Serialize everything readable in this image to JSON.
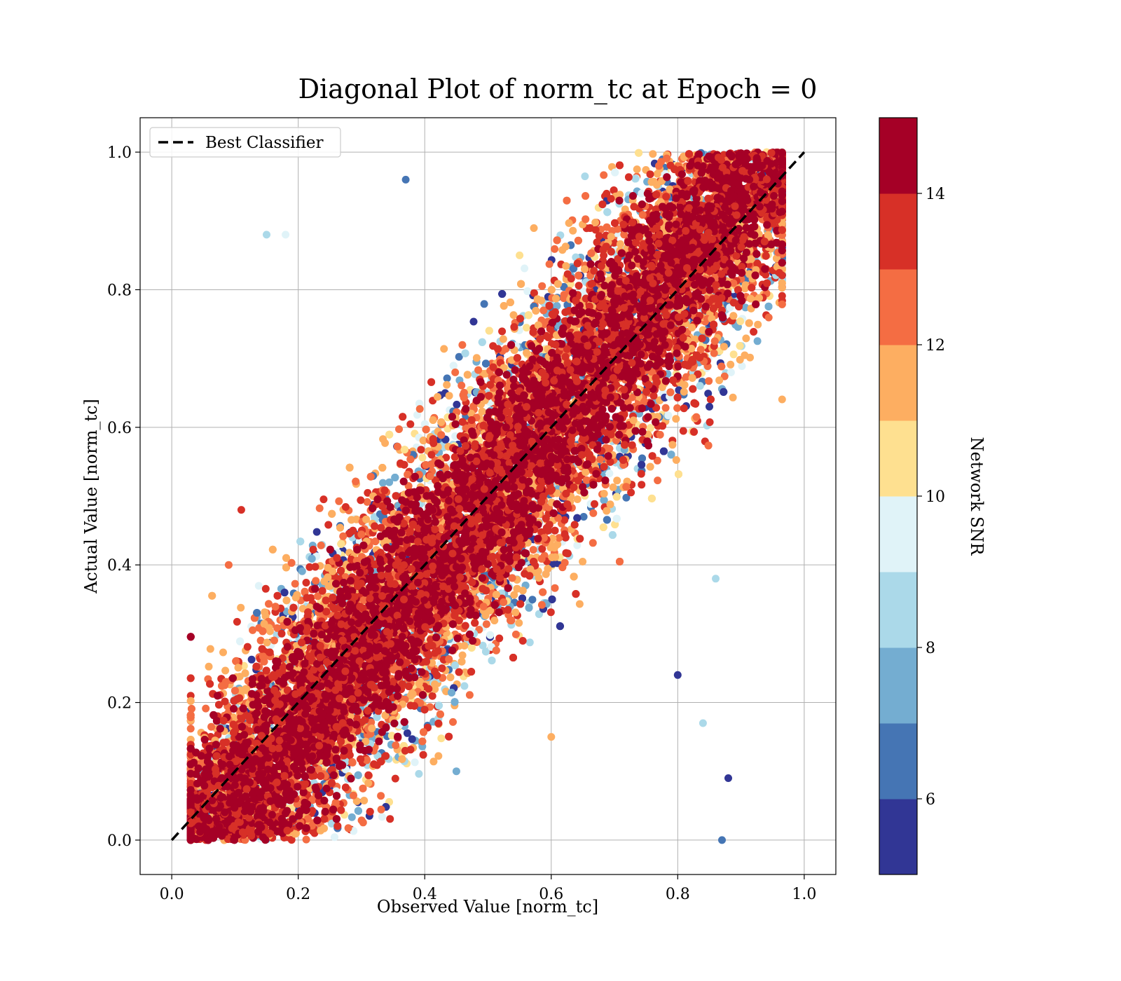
{
  "chart_data": {
    "type": "scatter",
    "title": "Diagonal Plot of norm_tc at Epoch = 0",
    "xlabel": "Observed Value [norm_tc]",
    "ylabel": "Actual Value [norm_tc]",
    "xlim": [
      -0.05,
      1.05
    ],
    "ylim": [
      -0.05,
      1.05
    ],
    "x_ticks": [
      "0.0",
      "0.2",
      "0.4",
      "0.6",
      "0.8",
      "1.0"
    ],
    "y_ticks": [
      "0.0",
      "0.2",
      "0.4",
      "0.6",
      "0.8",
      "1.0"
    ],
    "grid": true,
    "legend": {
      "placement": "upper-left",
      "entries": [
        "Best Classifier"
      ]
    },
    "reference_line": {
      "name": "Best Classifier",
      "style": "dashed",
      "color": "#000000",
      "x": [
        0.0,
        1.0
      ],
      "y": [
        0.0,
        1.0
      ]
    },
    "colorbar": {
      "label": "Network SNR",
      "range": [
        5,
        15
      ],
      "ticks": [
        "6",
        "8",
        "10",
        "12",
        "14"
      ],
      "bins": 10,
      "colors": [
        "#313695",
        "#4575b4",
        "#74add1",
        "#abd9e9",
        "#e0f3f8",
        "#fee090",
        "#fdae61",
        "#f46d43",
        "#d73027",
        "#a50026"
      ]
    },
    "points_description": "Dense cloud of points: high-SNR points cluster along the y = x diagonal band; low-SNR points scatter widely above and below it.",
    "sample_points": [
      {
        "x": 0.05,
        "y": 0.02,
        "snr": 14.8
      },
      {
        "x": 0.1,
        "y": 0.08,
        "snr": 14.5
      },
      {
        "x": 0.2,
        "y": 0.2,
        "snr": 14.9
      },
      {
        "x": 0.3,
        "y": 0.32,
        "snr": 14.6
      },
      {
        "x": 0.4,
        "y": 0.41,
        "snr": 14.7
      },
      {
        "x": 0.5,
        "y": 0.52,
        "snr": 14.3
      },
      {
        "x": 0.6,
        "y": 0.61,
        "snr": 14.8
      },
      {
        "x": 0.7,
        "y": 0.72,
        "snr": 14.5
      },
      {
        "x": 0.8,
        "y": 0.81,
        "snr": 14.9
      },
      {
        "x": 0.92,
        "y": 0.95,
        "snr": 14.7
      },
      {
        "x": 0.15,
        "y": 0.88,
        "snr": 8.2
      },
      {
        "x": 0.18,
        "y": 0.88,
        "snr": 9.6
      },
      {
        "x": 0.09,
        "y": 0.4,
        "snr": 12.5
      },
      {
        "x": 0.11,
        "y": 0.48,
        "snr": 13.6
      },
      {
        "x": 0.85,
        "y": 0.63,
        "snr": 5.3
      },
      {
        "x": 0.87,
        "y": 0.0,
        "snr": 6.0
      },
      {
        "x": 0.88,
        "y": 0.09,
        "snr": 5.4
      },
      {
        "x": 0.86,
        "y": 0.38,
        "snr": 8.4
      },
      {
        "x": 0.84,
        "y": 0.17,
        "snr": 8.5
      },
      {
        "x": 0.8,
        "y": 0.24,
        "snr": 5.5
      },
      {
        "x": 0.37,
        "y": 0.96,
        "snr": 6.8
      },
      {
        "x": 0.45,
        "y": 0.1,
        "snr": 7.1
      },
      {
        "x": 0.55,
        "y": 0.85,
        "snr": 10.5
      },
      {
        "x": 0.6,
        "y": 0.15,
        "snr": 11.5
      }
    ]
  }
}
